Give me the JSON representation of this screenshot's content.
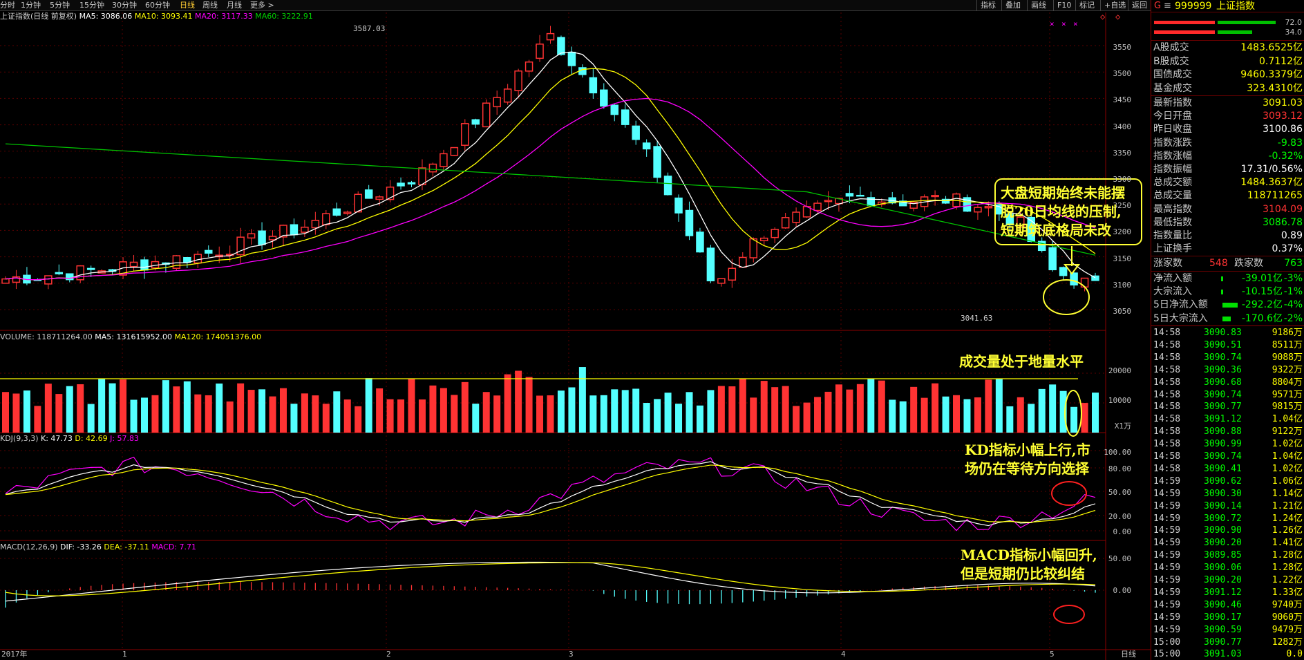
{
  "toolbar": {
    "timeframes": [
      "分时",
      "1分钟",
      "5分钟",
      "15分钟",
      "30分钟",
      "60分钟",
      "日线",
      "周线",
      "月线",
      "更多 >"
    ],
    "active_timeframe": "日线",
    "buttons": [
      "指标",
      "叠加",
      "画线",
      "F10",
      "标记",
      "+自选",
      "返回"
    ]
  },
  "legends": {
    "main": {
      "name": "上证指数(日线 前复权)",
      "ma5": "MA5: 3086.06",
      "ma10": "MA10: 3093.41",
      "ma20": "MA20: 3117.33",
      "ma60": "MA60: 3222.91"
    },
    "volume": {
      "name": "VOLUME: 118711264.00",
      "ma5": "MA5: 131615952.00",
      "ma120": "MA120: 174051376.00"
    },
    "kdj": {
      "name": "KDJ(9,3,3)",
      "k": "K: 47.73",
      "d": "D: 42.69",
      "j": "J: 57.83"
    },
    "macd": {
      "name": "MACD(12,26,9)",
      "dif": "DIF: -33.26",
      "dea": "DEA: -37.11",
      "macd": "MACD: 7.71"
    }
  },
  "chart_data": {
    "type": "candlestick",
    "price_axis_ticks": [
      "3550",
      "3500",
      "3450",
      "3400",
      "3350",
      "3300",
      "3250",
      "3200",
      "3150",
      "3100",
      "3050"
    ],
    "price_range": [
      3020,
      3590
    ],
    "high_mark": "3587.03",
    "low_mark": "3041.63",
    "volume_axis_ticks": [
      "20000",
      "10000"
    ],
    "volume_unit": "X1万",
    "kdj_axis_ticks": [
      "100.00",
      "80.00",
      "50.00",
      "20.00",
      "0.00"
    ],
    "macd_axis_ticks": [
      "50.00",
      "0.00"
    ],
    "date_labels": [
      "2017年",
      "1",
      "2",
      "3",
      "4",
      "5"
    ],
    "period_label": "日线"
  },
  "annotations": {
    "box1": [
      "大盘短期始终未能摆",
      "脱20日均线的压制,",
      "短期筑底格局未改"
    ],
    "volume": "成交量处于地量水平",
    "kdj": [
      "KD指标小幅上行,市",
      "场仍在等待方向选择"
    ],
    "macd": [
      "MACD指标小幅回升,",
      "但是短期仍比较纠结"
    ]
  },
  "colors": {
    "up": "#ff3333",
    "down": "#54ffff",
    "ma5": "#ffffff",
    "ma10": "#ffff00",
    "ma20": "#ff00ff",
    "ma60": "#00c000",
    "annotation": "#ffff33"
  },
  "quote": {
    "code_prefix": "G",
    "code": "999999",
    "name": "上证指数",
    "bar_right_top": "72.0",
    "bar_right_bottom": "34.0",
    "section1": [
      {
        "label": "A股成交",
        "value": "1483.6525亿"
      },
      {
        "label": "B股成交",
        "value": "0.7112亿"
      },
      {
        "label": "国债成交",
        "value": "9460.3379亿"
      },
      {
        "label": "基金成交",
        "value": "323.4310亿"
      }
    ],
    "section2": [
      {
        "label": "最新指数",
        "value": "3091.03"
      },
      {
        "label": "今日开盘",
        "value": "3093.12"
      },
      {
        "label": "昨日收盘",
        "value": "3100.86"
      },
      {
        "label": "指数涨跌",
        "value": "-9.83"
      },
      {
        "label": "指数涨幅",
        "value": "-0.32%"
      },
      {
        "label": "指数振幅",
        "value": "17.31/0.56%"
      },
      {
        "label": "总成交额",
        "value": "1484.3637亿"
      },
      {
        "label": "总成交量",
        "value": "118711265"
      },
      {
        "label": "最高指数",
        "value": "3104.09"
      },
      {
        "label": "最低指数",
        "value": "3086.78"
      },
      {
        "label": "指数量比",
        "value": "0.89"
      },
      {
        "label": "上证换手",
        "value": "0.37%"
      }
    ],
    "updown": {
      "up_label": "涨家数",
      "up_value": "548",
      "down_label": "跌家数",
      "down_value": "763"
    },
    "flows": [
      {
        "label": "净流入额",
        "value": "-39.01亿",
        "pct": "-3%"
      },
      {
        "label": "大宗流入",
        "value": "-10.15亿",
        "pct": "-1%"
      },
      {
        "label": "5日净流入额",
        "value": "-292.2亿",
        "pct": "-4%"
      },
      {
        "label": "5日大宗流入",
        "value": "-170.6亿",
        "pct": "-2%"
      }
    ],
    "ticks": [
      {
        "time": "14:58",
        "price": "3090.83",
        "vol": "9186万"
      },
      {
        "time": "14:58",
        "price": "3090.51",
        "vol": "8511万"
      },
      {
        "time": "14:58",
        "price": "3090.74",
        "vol": "9088万"
      },
      {
        "time": "14:58",
        "price": "3090.36",
        "vol": "9322万"
      },
      {
        "time": "14:58",
        "price": "3090.68",
        "vol": "8804万"
      },
      {
        "time": "14:58",
        "price": "3090.74",
        "vol": "9571万"
      },
      {
        "time": "14:58",
        "price": "3090.77",
        "vol": "9815万"
      },
      {
        "time": "14:58",
        "price": "3091.12",
        "vol": "1.04亿"
      },
      {
        "time": "14:58",
        "price": "3090.88",
        "vol": "9122万"
      },
      {
        "time": "14:58",
        "price": "3090.99",
        "vol": "1.02亿"
      },
      {
        "time": "14:58",
        "price": "3090.74",
        "vol": "1.04亿"
      },
      {
        "time": "14:58",
        "price": "3090.41",
        "vol": "1.02亿"
      },
      {
        "time": "14:59",
        "price": "3090.62",
        "vol": "1.06亿"
      },
      {
        "time": "14:59",
        "price": "3090.30",
        "vol": "1.14亿"
      },
      {
        "time": "14:59",
        "price": "3090.14",
        "vol": "1.21亿"
      },
      {
        "time": "14:59",
        "price": "3090.72",
        "vol": "1.24亿"
      },
      {
        "time": "14:59",
        "price": "3090.90",
        "vol": "1.26亿"
      },
      {
        "time": "14:59",
        "price": "3090.20",
        "vol": "1.41亿"
      },
      {
        "time": "14:59",
        "price": "3089.85",
        "vol": "1.28亿"
      },
      {
        "time": "14:59",
        "price": "3090.06",
        "vol": "1.28亿"
      },
      {
        "time": "14:59",
        "price": "3090.20",
        "vol": "1.22亿"
      },
      {
        "time": "14:59",
        "price": "3091.12",
        "vol": "1.33亿"
      },
      {
        "time": "14:59",
        "price": "3090.46",
        "vol": "9740万"
      },
      {
        "time": "14:59",
        "price": "3090.17",
        "vol": "9060万"
      },
      {
        "time": "14:59",
        "price": "3090.59",
        "vol": "9479万"
      },
      {
        "time": "15:00",
        "price": "3090.77",
        "vol": "1282万"
      },
      {
        "time": "15:00",
        "price": "3091.03",
        "vol": "0.0"
      }
    ]
  }
}
